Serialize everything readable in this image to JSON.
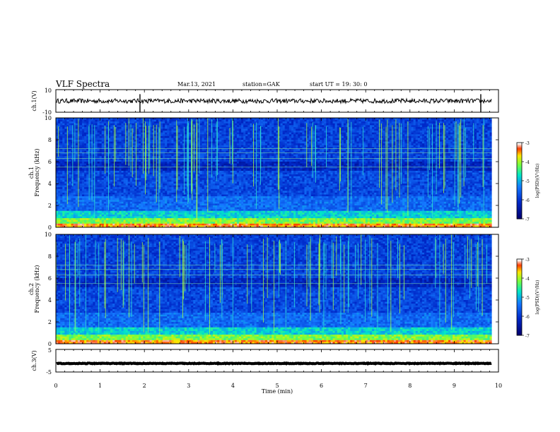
{
  "header": {
    "title": "VLF Spectra",
    "date": "Mar.13, 2021",
    "station": "station=GAK",
    "start_ut": "start UT =   19: 30: 0"
  },
  "chart_data": [
    {
      "type": "line",
      "panel": "ch1-waveform",
      "ylabel": "ch.1(V)",
      "ylim": [
        -10,
        10
      ],
      "yticks": [
        "10",
        "-10"
      ],
      "baseline": 0,
      "spike_times_min": [
        1.9,
        9.6
      ],
      "color": "#000000"
    },
    {
      "type": "heatmap",
      "panel": "ch1-spectrogram",
      "ylabel_line1": "ch.1",
      "ylabel_line2": "Frequency (kHz)",
      "ylim": [
        0,
        10
      ],
      "yticks": [
        0,
        2,
        4,
        6,
        8,
        10
      ],
      "xlim": [
        0,
        10
      ],
      "colorbar": {
        "label": "log(PSD)(V²/Hz)",
        "ticks": [
          -3,
          -4,
          -5,
          -6,
          -7
        ],
        "range": [
          -7,
          -3
        ]
      }
    },
    {
      "type": "heatmap",
      "panel": "ch2-spectrogram",
      "ylabel_line1": "ch.2",
      "ylabel_line2": "Frequency (kHz)",
      "ylim": [
        0,
        10
      ],
      "yticks": [
        0,
        2,
        4,
        6,
        8,
        10
      ],
      "xlim": [
        0,
        10
      ],
      "colorbar": {
        "label": "log(PSD)(V²/Hz)",
        "ticks": [
          -3,
          -4,
          -5,
          -6,
          -7
        ],
        "range": [
          -7,
          -3
        ]
      }
    },
    {
      "type": "line",
      "panel": "ch3-waveform",
      "ylabel": "ch.3(V)",
      "ylim": [
        -5,
        5
      ],
      "yticks": [
        "5",
        "-5"
      ],
      "baseline": -1.2,
      "color": "#000000"
    }
  ],
  "xaxis": {
    "label": "Time (min)",
    "ticks": [
      0,
      1,
      2,
      3,
      4,
      5,
      6,
      7,
      8,
      9,
      10
    ]
  }
}
